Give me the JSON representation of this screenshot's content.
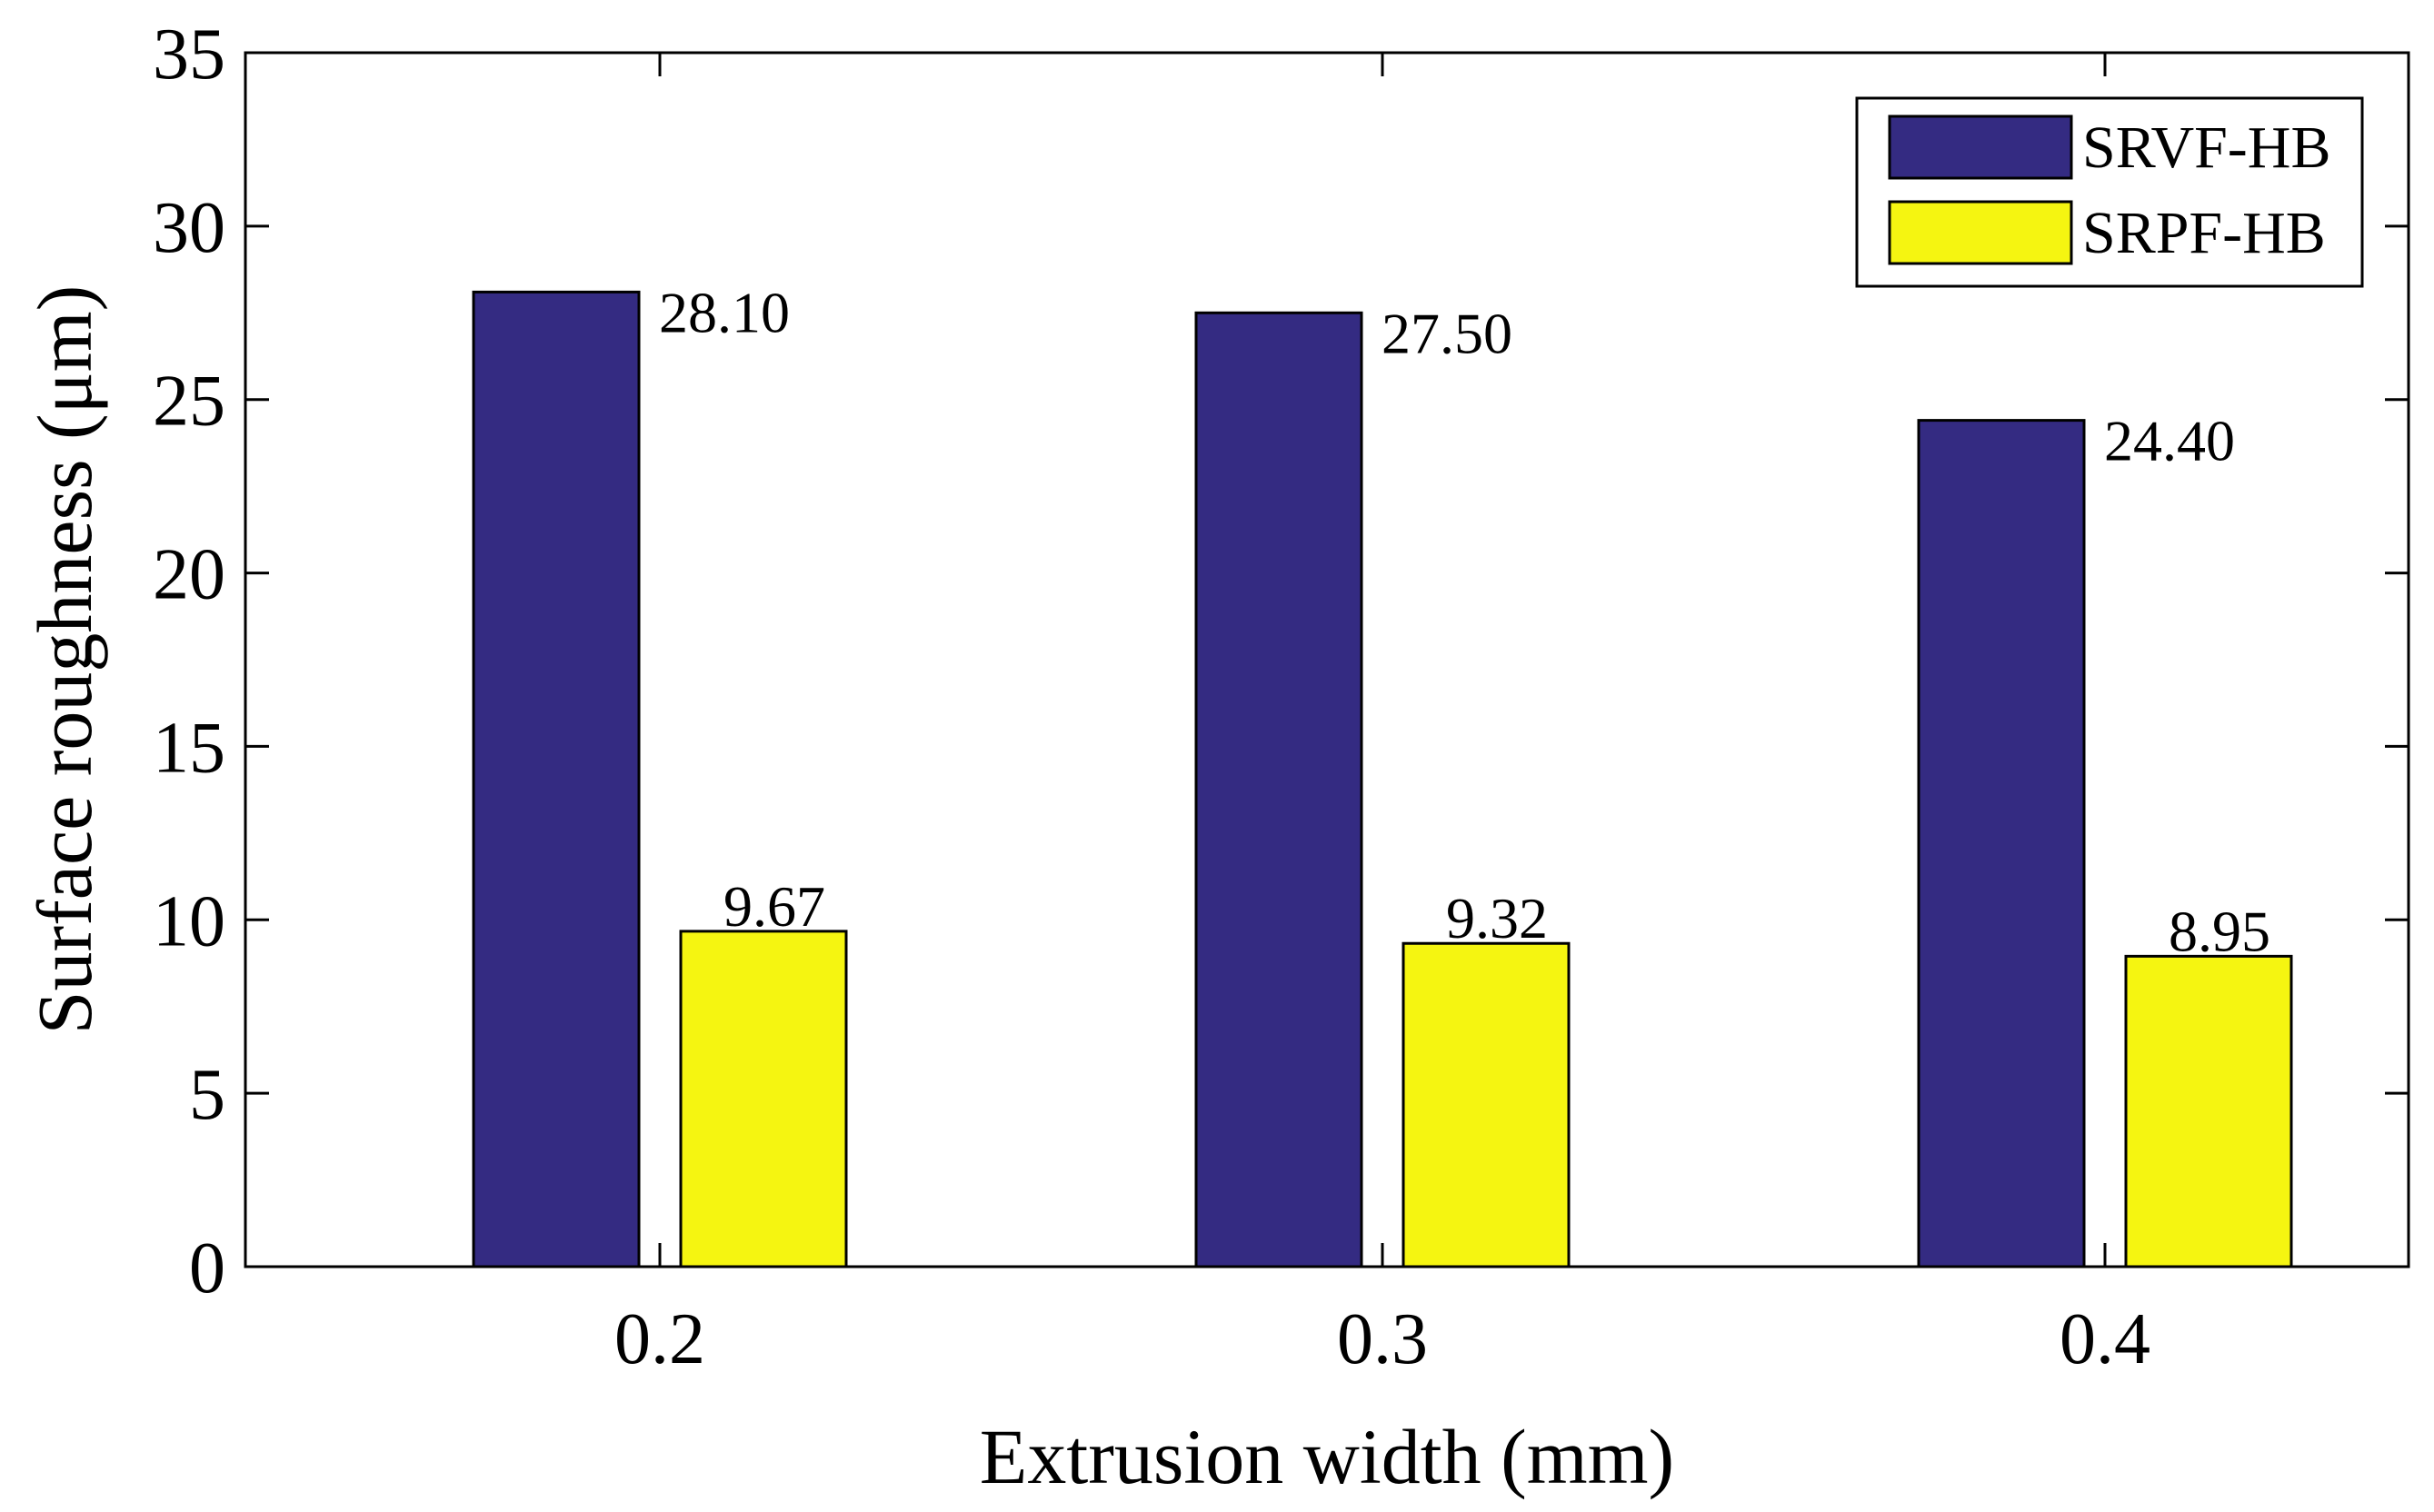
{
  "chart_data": {
    "type": "bar",
    "title": "",
    "xlabel": "Extrusion width (mm)",
    "ylabel": "Surface roughness (μm)",
    "categories": [
      "0.2",
      "0.3",
      "0.4"
    ],
    "ylim": [
      0,
      35
    ],
    "yticks": [
      "0",
      "5",
      "10",
      "15",
      "20",
      "25",
      "30",
      "35"
    ],
    "grid": false,
    "legend_position": "top-right",
    "series": [
      {
        "name": "SRVF-HB",
        "color": "#342b82",
        "values": [
          28.1,
          27.5,
          24.4
        ],
        "labels": [
          "28.10",
          "27.50",
          "24.40"
        ]
      },
      {
        "name": "SRPF-HB",
        "color": "#f5f511",
        "values": [
          9.67,
          9.32,
          8.95
        ],
        "labels": [
          "9.67",
          "9.32",
          "8.95"
        ]
      }
    ]
  }
}
